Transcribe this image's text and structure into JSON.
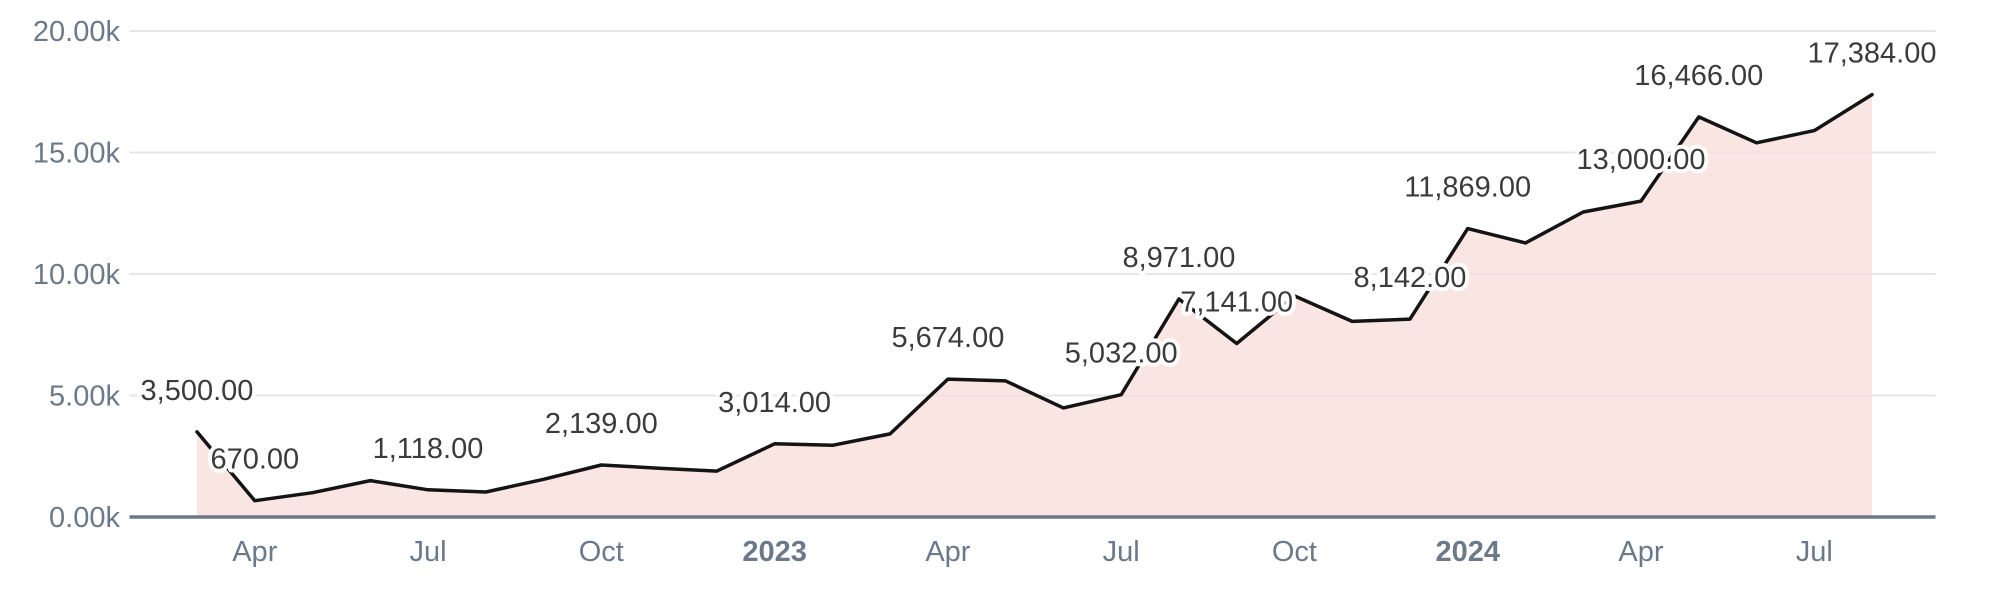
{
  "chart_data": {
    "type": "area",
    "title": "",
    "xlabel": "",
    "ylabel": "",
    "ylim": [
      0,
      20000
    ],
    "grid": true,
    "legend": false,
    "x": [
      "Mar 2022",
      "Apr 2022",
      "May 2022",
      "Jun 2022",
      "Jul 2022",
      "Aug 2022",
      "Sep 2022",
      "Oct 2022",
      "Nov 2022",
      "Dec 2022",
      "Jan 2023",
      "Feb 2023",
      "Mar 2023",
      "Apr 2023",
      "May 2023",
      "Jun 2023",
      "Jul 2023",
      "Aug 2023",
      "Sep 2023",
      "Oct 2023",
      "Nov 2023",
      "Dec 2023",
      "Jan 2024",
      "Feb 2024",
      "Mar 2024",
      "Apr 2024",
      "May 2024",
      "Jun 2024",
      "Jul 2024",
      "Aug 2024"
    ],
    "values": [
      3500,
      670,
      1000,
      1500,
      1118,
      1030,
      1550,
      2139,
      2010,
      1890,
      3014,
      2950,
      3420,
      5674,
      5600,
      4490,
      5032,
      8971,
      7141,
      9100,
      8050,
      8142,
      11869,
      11280,
      12550,
      13000,
      16466,
      15400,
      15900,
      17384
    ],
    "point_labels": {
      "0": "3,500.00",
      "1": "670.00",
      "4": "1,118.00",
      "7": "2,139.00",
      "10": "3,014.00",
      "13": "5,674.00",
      "16": "5,032.00",
      "17": "8,971.00",
      "18": "7,141.00",
      "21": "8,142.00",
      "22": "11,869.00",
      "25": "13,000.00",
      "26": "16,466.00",
      "29": "17,384.00"
    },
    "x_ticks": [
      {
        "i": 1,
        "label": "Apr",
        "bold": false
      },
      {
        "i": 4,
        "label": "Jul",
        "bold": false
      },
      {
        "i": 7,
        "label": "Oct",
        "bold": false
      },
      {
        "i": 10,
        "label": "2023",
        "bold": true
      },
      {
        "i": 13,
        "label": "Apr",
        "bold": false
      },
      {
        "i": 16,
        "label": "Jul",
        "bold": false
      },
      {
        "i": 19,
        "label": "Oct",
        "bold": false
      },
      {
        "i": 22,
        "label": "2024",
        "bold": true
      },
      {
        "i": 25,
        "label": "Apr",
        "bold": false
      },
      {
        "i": 28,
        "label": "Jul",
        "bold": false
      }
    ],
    "y_ticks": [
      {
        "value": 0,
        "label": "0.00k"
      },
      {
        "value": 5000,
        "label": "5.00k"
      },
      {
        "value": 10000,
        "label": "10.00k"
      },
      {
        "value": 15000,
        "label": "15.00k"
      },
      {
        "value": 20000,
        "label": "20.00k"
      }
    ],
    "colors": {
      "line": "#141414",
      "area": "#f7dcd8",
      "grid": "#e6e6e9",
      "axis_line": "#6b7989",
      "tick_text": "#6b7989",
      "label_text": "#3b3b3d",
      "label_halo": "#ffffff",
      "background": "#ffffff"
    }
  }
}
